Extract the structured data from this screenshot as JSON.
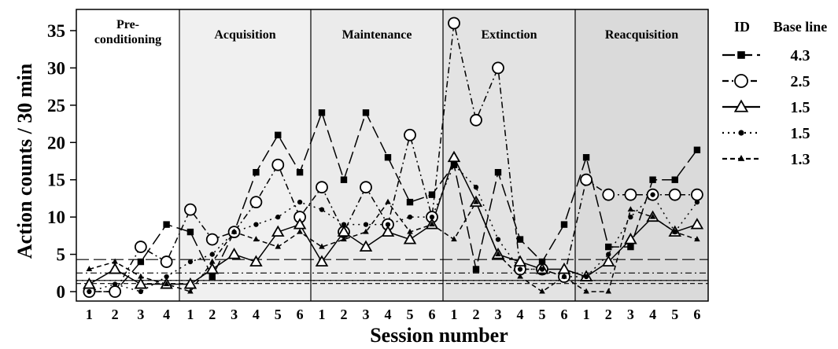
{
  "chart_data": {
    "type": "line",
    "ylabel": "Action counts / 30 min",
    "xlabel": "Session number",
    "ylim": [
      0,
      37
    ],
    "yticks": [
      0,
      5,
      10,
      15,
      20,
      25,
      30,
      35
    ],
    "phases": [
      {
        "name": "Pre-\nconditioning",
        "sessions": [
          "1",
          "2",
          "3",
          "4"
        ],
        "shade": "#ffffff"
      },
      {
        "name": "Acquisition",
        "sessions": [
          "1",
          "2",
          "3",
          "4",
          "5",
          "6"
        ],
        "shade": "#f0f0f0"
      },
      {
        "name": "Maintenance",
        "sessions": [
          "1",
          "2",
          "3",
          "4",
          "5",
          "6"
        ],
        "shade": "#ebebeb"
      },
      {
        "name": "Extinction",
        "sessions": [
          "1",
          "2",
          "3",
          "4",
          "5",
          "6"
        ],
        "shade": "#e3e3e3"
      },
      {
        "name": "Reacquisition",
        "sessions": [
          "1",
          "2",
          "3",
          "4",
          "5",
          "6"
        ],
        "shade": "#dadada"
      }
    ],
    "legend_titles": {
      "id": "ID",
      "baseline": "Base line"
    },
    "series": [
      {
        "marker": "square",
        "dash": "16,6",
        "baseline": 4.3,
        "baseline_label": "4.3",
        "values": [
          [
            0,
            0,
            4,
            9
          ],
          [
            8,
            2,
            8,
            16,
            21,
            16
          ],
          [
            24,
            15,
            24,
            18,
            12,
            13
          ],
          [
            17,
            3,
            16,
            7,
            4,
            9
          ],
          [
            18,
            6,
            6,
            15,
            15,
            19
          ]
        ]
      },
      {
        "marker": "circle-open",
        "dash": "8,4,2,4",
        "baseline": 2.5,
        "baseline_label": "2.5",
        "values": [
          [
            0,
            0,
            6,
            4
          ],
          [
            11,
            7,
            8,
            12,
            17,
            10
          ],
          [
            14,
            8,
            14,
            9,
            21,
            10
          ],
          [
            36,
            23,
            30,
            3,
            3,
            2
          ],
          [
            15,
            13,
            13,
            13,
            13,
            13
          ]
        ]
      },
      {
        "marker": "triangle-open",
        "dash": "",
        "baseline": 1.5,
        "baseline_label": "1.5",
        "values": [
          [
            1,
            3,
            1,
            1
          ],
          [
            1,
            3,
            5,
            4,
            8,
            9
          ],
          [
            4,
            8,
            6,
            8,
            7,
            9
          ],
          [
            18,
            12,
            5,
            4,
            3,
            3
          ],
          [
            2,
            4,
            7,
            10,
            8,
            9
          ]
        ]
      },
      {
        "marker": "circle-filled",
        "dash": "2,5",
        "baseline": 1.5,
        "baseline_label": "1.5",
        "values": [
          [
            0,
            1,
            0,
            2
          ],
          [
            4,
            5,
            8,
            9,
            10,
            12
          ],
          [
            11,
            9,
            9,
            9,
            10,
            10
          ],
          [
            17,
            14,
            7,
            3,
            3,
            2
          ],
          [
            2,
            5,
            10,
            13,
            8,
            12
          ]
        ]
      },
      {
        "marker": "triangle-filled",
        "dash": "6,4",
        "baseline": 1.3,
        "baseline_label": "1.3",
        "values": [
          [
            3,
            4,
            2,
            1
          ],
          [
            0,
            4,
            8,
            7,
            6,
            8
          ],
          [
            6,
            7,
            8,
            12,
            8,
            9
          ],
          [
            7,
            12,
            5,
            2,
            0,
            2
          ],
          [
            0,
            0,
            11,
            10,
            8,
            7
          ]
        ]
      }
    ]
  }
}
